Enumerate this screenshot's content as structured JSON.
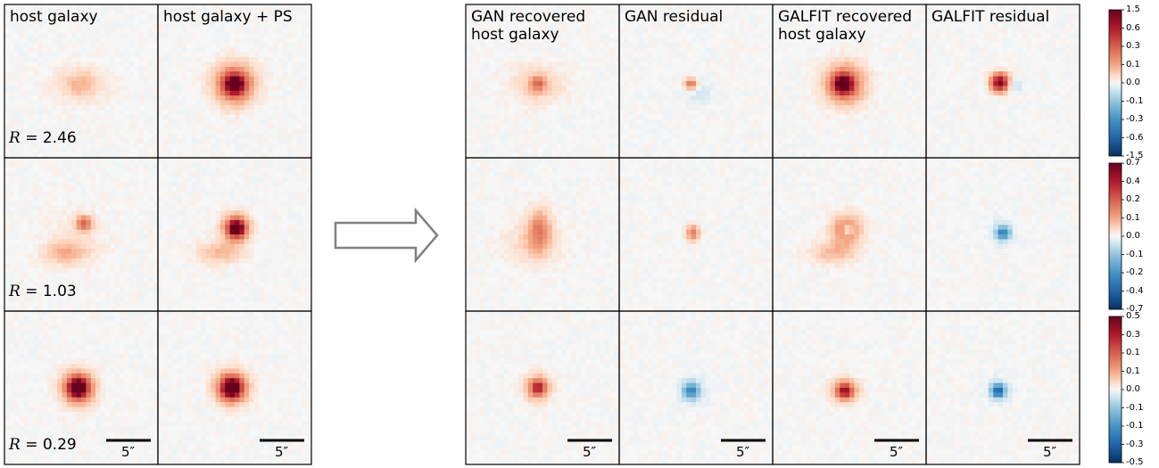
{
  "chart_data": {
    "type": "heatmap",
    "title": "",
    "input_columns": [
      "host galaxy",
      "host galaxy + PS"
    ],
    "output_columns": [
      "GAN recovered\nhost galaxy",
      "GAN residual",
      "GALFIT recovered\nhost galaxy",
      "GALFIT residual"
    ],
    "rows": [
      {
        "R_label": "R",
        "R_value": "= 2.46",
        "colorbar": {
          "ticks": [
            "1.5",
            "0.6",
            "0.3",
            "0.1",
            "0.0",
            "-0.1",
            "-0.3",
            "-0.6",
            "-1.5"
          ],
          "min": -1.5,
          "max": 1.5
        },
        "panels": [
          {
            "blobs": [
              {
                "cx": 0.5,
                "cy": 0.52,
                "sx": 0.13,
                "sy": 0.08,
                "amp": 0.12
              },
              {
                "cx": 0.5,
                "cy": 0.52,
                "sx": 0.06,
                "sy": 0.06,
                "amp": 0.1
              }
            ]
          },
          {
            "blobs": [
              {
                "cx": 0.5,
                "cy": 0.52,
                "sx": 0.09,
                "sy": 0.09,
                "amp": 0.55
              },
              {
                "cx": 0.5,
                "cy": 0.52,
                "sx": 0.04,
                "sy": 0.04,
                "amp": 0.9
              }
            ]
          },
          {
            "blobs": [
              {
                "cx": 0.47,
                "cy": 0.52,
                "sx": 0.12,
                "sy": 0.09,
                "amp": 0.14
              },
              {
                "cx": 0.47,
                "cy": 0.52,
                "sx": 0.035,
                "sy": 0.035,
                "amp": 0.35
              }
            ]
          },
          {
            "blobs": [
              {
                "cx": 0.47,
                "cy": 0.52,
                "sx": 0.03,
                "sy": 0.025,
                "amp": 0.45
              },
              {
                "cx": 0.52,
                "cy": 0.58,
                "sx": 0.06,
                "sy": 0.06,
                "amp": -0.08
              }
            ]
          },
          {
            "blobs": [
              {
                "cx": 0.47,
                "cy": 0.52,
                "sx": 0.09,
                "sy": 0.09,
                "amp": 0.5
              },
              {
                "cx": 0.46,
                "cy": 0.52,
                "sx": 0.04,
                "sy": 0.04,
                "amp": 0.9
              }
            ]
          },
          {
            "blobs": [
              {
                "cx": 0.48,
                "cy": 0.51,
                "sx": 0.04,
                "sy": 0.04,
                "amp": 0.95
              },
              {
                "cx": 0.58,
                "cy": 0.53,
                "sx": 0.03,
                "sy": 0.03,
                "amp": -0.15
              }
            ]
          }
        ]
      },
      {
        "R_label": "R",
        "R_value": "= 1.03",
        "colorbar": {
          "ticks": [
            "0.7",
            "0.4",
            "0.2",
            "0.1",
            "0.0",
            "-0.1",
            "-0.2",
            "-0.4",
            "-0.7"
          ],
          "min": -0.7,
          "max": 0.7
        },
        "panels": [
          {
            "blobs": [
              {
                "cx": 0.52,
                "cy": 0.43,
                "sx": 0.035,
                "sy": 0.035,
                "amp": 0.45
              },
              {
                "cx": 0.4,
                "cy": 0.62,
                "sx": 0.1,
                "sy": 0.05,
                "amp": 0.2
              },
              {
                "cx": 0.46,
                "cy": 0.52,
                "sx": 0.14,
                "sy": 0.12,
                "amp": 0.06
              }
            ]
          },
          {
            "blobs": [
              {
                "cx": 0.51,
                "cy": 0.46,
                "sx": 0.06,
                "sy": 0.06,
                "amp": 0.6
              },
              {
                "cx": 0.51,
                "cy": 0.46,
                "sx": 0.03,
                "sy": 0.03,
                "amp": 0.9
              },
              {
                "cx": 0.4,
                "cy": 0.62,
                "sx": 0.1,
                "sy": 0.05,
                "amp": 0.2
              }
            ]
          },
          {
            "blobs": [
              {
                "cx": 0.48,
                "cy": 0.47,
                "sx": 0.05,
                "sy": 0.09,
                "amp": 0.35
              },
              {
                "cx": 0.44,
                "cy": 0.56,
                "sx": 0.13,
                "sy": 0.1,
                "amp": 0.12
              }
            ]
          },
          {
            "blobs": [
              {
                "cx": 0.48,
                "cy": 0.49,
                "sx": 0.03,
                "sy": 0.035,
                "amp": 0.4
              }
            ]
          },
          {
            "blobs": [
              {
                "cx": 0.48,
                "cy": 0.47,
                "sx": 0.07,
                "sy": 0.07,
                "amp": 0.35
              },
              {
                "cx": 0.49,
                "cy": 0.47,
                "sx": 0.02,
                "sy": 0.02,
                "amp": -0.35
              },
              {
                "cx": 0.4,
                "cy": 0.62,
                "sx": 0.1,
                "sy": 0.05,
                "amp": 0.2
              }
            ]
          },
          {
            "blobs": [
              {
                "cx": 0.5,
                "cy": 0.49,
                "sx": 0.03,
                "sy": 0.03,
                "amp": -0.55
              },
              {
                "cx": 0.5,
                "cy": 0.49,
                "sx": 0.07,
                "sy": 0.07,
                "amp": -0.08
              }
            ]
          }
        ]
      },
      {
        "R_label": "R",
        "R_value": "= 0.29",
        "colorbar": {
          "ticks": [
            "0.5",
            "0.3",
            "0.1",
            "0.1",
            "0.0",
            "-0.1",
            "-0.1",
            "-0.3",
            "-0.5"
          ],
          "min": -0.5,
          "max": 0.5
        },
        "panels": [
          {
            "blobs": [
              {
                "cx": 0.48,
                "cy": 0.5,
                "sx": 0.07,
                "sy": 0.07,
                "amp": 0.7
              },
              {
                "cx": 0.48,
                "cy": 0.5,
                "sx": 0.035,
                "sy": 0.035,
                "amp": 0.9
              }
            ]
          },
          {
            "blobs": [
              {
                "cx": 0.48,
                "cy": 0.5,
                "sx": 0.07,
                "sy": 0.07,
                "amp": 0.7
              },
              {
                "cx": 0.48,
                "cy": 0.5,
                "sx": 0.035,
                "sy": 0.035,
                "amp": 0.9
              }
            ]
          },
          {
            "blobs": [
              {
                "cx": 0.47,
                "cy": 0.5,
                "sx": 0.06,
                "sy": 0.06,
                "amp": 0.35
              },
              {
                "cx": 0.47,
                "cy": 0.5,
                "sx": 0.03,
                "sy": 0.03,
                "amp": 0.45
              }
            ]
          },
          {
            "blobs": [
              {
                "cx": 0.47,
                "cy": 0.52,
                "sx": 0.035,
                "sy": 0.035,
                "amp": -0.5
              },
              {
                "cx": 0.47,
                "cy": 0.52,
                "sx": 0.07,
                "sy": 0.07,
                "amp": -0.1
              }
            ]
          },
          {
            "blobs": [
              {
                "cx": 0.47,
                "cy": 0.52,
                "sx": 0.06,
                "sy": 0.05,
                "amp": 0.4
              },
              {
                "cx": 0.47,
                "cy": 0.52,
                "sx": 0.03,
                "sy": 0.03,
                "amp": 0.5
              }
            ]
          },
          {
            "blobs": [
              {
                "cx": 0.47,
                "cy": 0.52,
                "sx": 0.03,
                "sy": 0.03,
                "amp": -0.7
              },
              {
                "cx": 0.47,
                "cy": 0.52,
                "sx": 0.06,
                "sy": 0.06,
                "amp": -0.1
              }
            ]
          }
        ]
      }
    ],
    "scalebar_label": "5″",
    "colormap": "RdBu_r"
  }
}
